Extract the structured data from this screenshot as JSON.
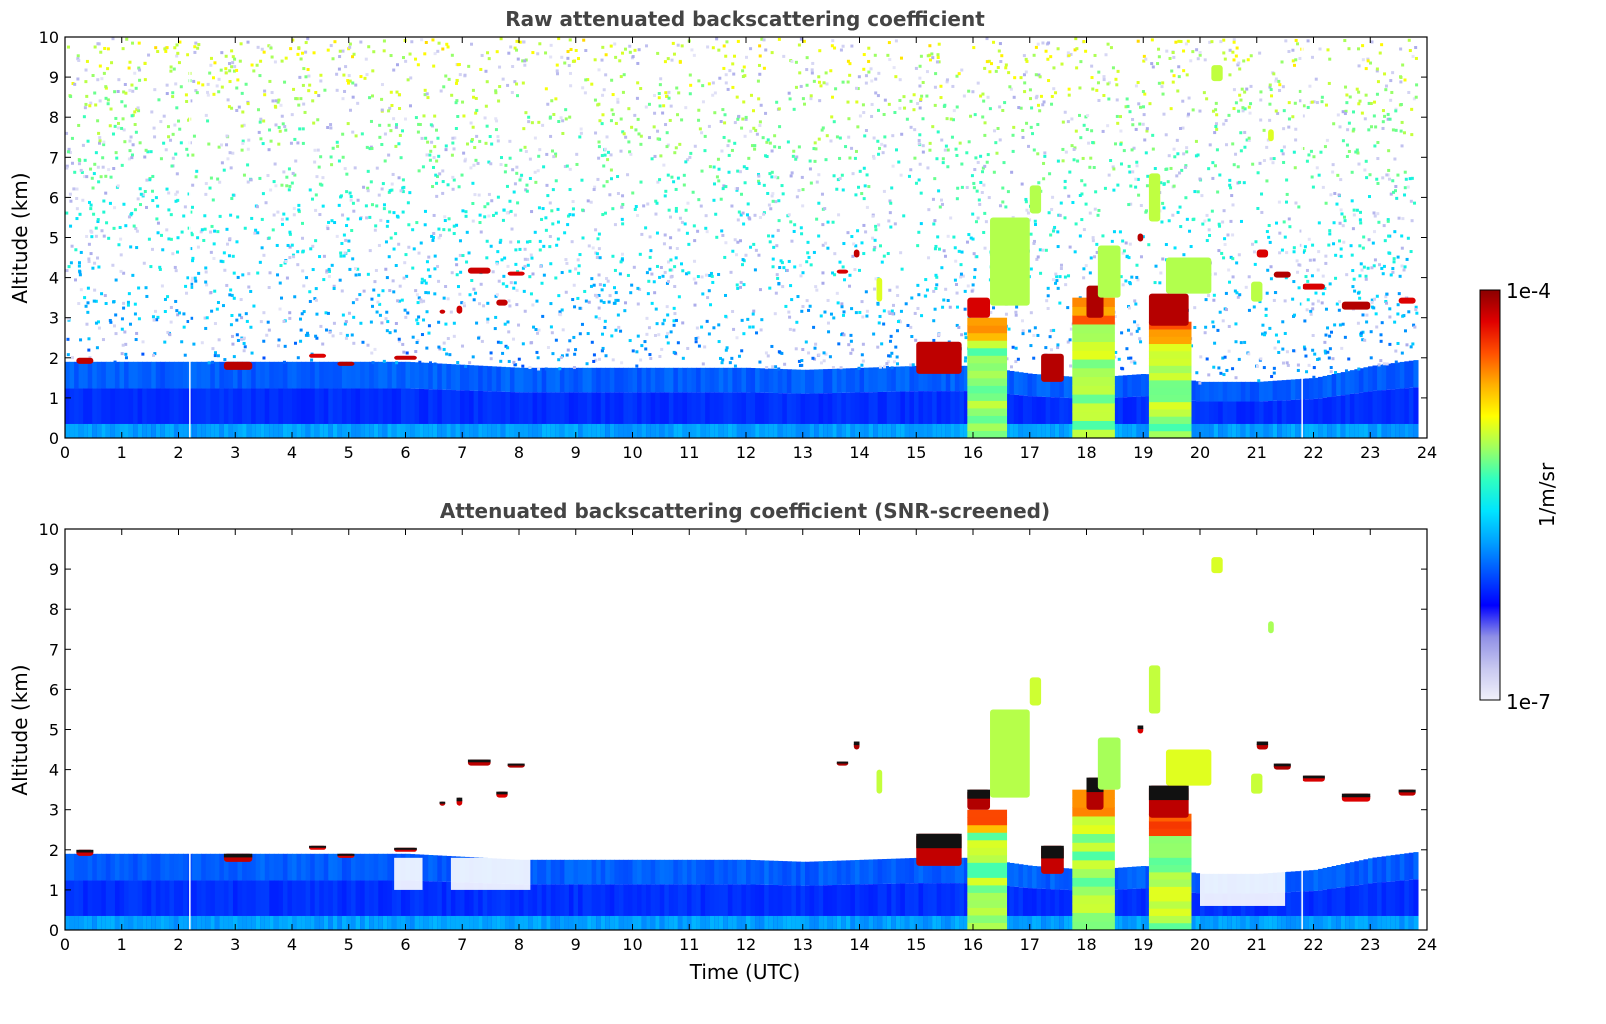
{
  "chart_data": [
    {
      "type": "heatmap",
      "title": "Raw attenuated backscattering coefficient",
      "xlabel": "",
      "ylabel": "Altitude (km)",
      "xlim": [
        0,
        24
      ],
      "ylim": [
        0,
        10
      ],
      "x_ticks": [
        "0",
        "1",
        "2",
        "3",
        "4",
        "5",
        "6",
        "7",
        "8",
        "9",
        "10",
        "11",
        "12",
        "13",
        "14",
        "15",
        "16",
        "17",
        "18",
        "19",
        "20",
        "21",
        "22",
        "23",
        "24"
      ],
      "y_ticks": [
        "0",
        "1",
        "2",
        "3",
        "4",
        "5",
        "6",
        "7",
        "8",
        "9",
        "10"
      ],
      "grid": false,
      "noise_above_boundary_layer": true,
      "boundary_layer": [
        {
          "x": 0,
          "top": 1.9
        },
        {
          "x": 2,
          "top": 1.9
        },
        {
          "x": 4,
          "top": 1.9
        },
        {
          "x": 6,
          "top": 1.9
        },
        {
          "x": 8,
          "top": 1.75
        },
        {
          "x": 10,
          "top": 1.75
        },
        {
          "x": 12,
          "top": 1.75
        },
        {
          "x": 13,
          "top": 1.7
        },
        {
          "x": 14,
          "top": 1.75
        },
        {
          "x": 15,
          "top": 1.8
        },
        {
          "x": 16,
          "top": 1.8
        },
        {
          "x": 17,
          "top": 1.6
        },
        {
          "x": 18,
          "top": 1.5
        },
        {
          "x": 19,
          "top": 1.6
        },
        {
          "x": 20,
          "top": 1.4
        },
        {
          "x": 21,
          "top": 1.4
        },
        {
          "x": 22,
          "top": 1.5
        },
        {
          "x": 23,
          "top": 1.8
        },
        {
          "x": 23.8,
          "top": 1.95
        }
      ],
      "cloud_features": [
        {
          "x0": 0.2,
          "x1": 0.5,
          "y0": 1.85,
          "y1": 2.0,
          "level": "high"
        },
        {
          "x0": 2.8,
          "x1": 3.3,
          "y0": 1.7,
          "y1": 1.9,
          "level": "high"
        },
        {
          "x0": 4.3,
          "x1": 4.6,
          "y0": 2.0,
          "y1": 2.1,
          "level": "high"
        },
        {
          "x0": 4.8,
          "x1": 5.1,
          "y0": 1.8,
          "y1": 1.9,
          "level": "high"
        },
        {
          "x0": 5.8,
          "x1": 6.2,
          "y0": 1.95,
          "y1": 2.05,
          "level": "high"
        },
        {
          "x0": 6.6,
          "x1": 6.7,
          "y0": 3.1,
          "y1": 3.2,
          "level": "high"
        },
        {
          "x0": 6.9,
          "x1": 7.0,
          "y0": 3.1,
          "y1": 3.3,
          "level": "high"
        },
        {
          "x0": 7.1,
          "x1": 7.5,
          "y0": 4.1,
          "y1": 4.25,
          "level": "high"
        },
        {
          "x0": 7.8,
          "x1": 8.1,
          "y0": 4.05,
          "y1": 4.15,
          "level": "high"
        },
        {
          "x0": 7.6,
          "x1": 7.8,
          "y0": 3.3,
          "y1": 3.45,
          "level": "high"
        },
        {
          "x0": 13.6,
          "x1": 13.8,
          "y0": 4.1,
          "y1": 4.2,
          "level": "high"
        },
        {
          "x0": 13.9,
          "x1": 14.0,
          "y0": 4.5,
          "y1": 4.7,
          "level": "high"
        },
        {
          "x0": 14.3,
          "x1": 14.4,
          "y0": 3.4,
          "y1": 4.0,
          "level": "mid"
        },
        {
          "x0": 15.0,
          "x1": 15.8,
          "y0": 1.6,
          "y1": 2.4,
          "level": "high"
        },
        {
          "x0": 15.9,
          "x1": 16.3,
          "y0": 3.0,
          "y1": 3.5,
          "level": "high"
        },
        {
          "x0": 16.3,
          "x1": 17.0,
          "y0": 3.3,
          "y1": 5.5,
          "level": "mid"
        },
        {
          "x0": 17.0,
          "x1": 17.2,
          "y0": 5.6,
          "y1": 6.3,
          "level": "mid"
        },
        {
          "x0": 17.2,
          "x1": 17.6,
          "y0": 1.4,
          "y1": 2.1,
          "level": "high"
        },
        {
          "x0": 18.0,
          "x1": 18.3,
          "y0": 3.0,
          "y1": 3.8,
          "level": "high"
        },
        {
          "x0": 18.2,
          "x1": 18.6,
          "y0": 3.5,
          "y1": 4.8,
          "level": "mid"
        },
        {
          "x0": 18.9,
          "x1": 19.0,
          "y0": 4.9,
          "y1": 5.1,
          "level": "high"
        },
        {
          "x0": 19.1,
          "x1": 19.3,
          "y0": 5.4,
          "y1": 6.6,
          "level": "mid"
        },
        {
          "x0": 19.1,
          "x1": 19.8,
          "y0": 2.8,
          "y1": 3.6,
          "level": "high"
        },
        {
          "x0": 19.4,
          "x1": 20.2,
          "y0": 3.6,
          "y1": 4.5,
          "level": "mid"
        },
        {
          "x0": 20.2,
          "x1": 20.4,
          "y0": 8.9,
          "y1": 9.3,
          "level": "mid"
        },
        {
          "x0": 20.9,
          "x1": 21.1,
          "y0": 3.4,
          "y1": 3.9,
          "level": "mid"
        },
        {
          "x0": 21.0,
          "x1": 21.2,
          "y0": 4.5,
          "y1": 4.7,
          "level": "high"
        },
        {
          "x0": 21.2,
          "x1": 21.3,
          "y0": 7.4,
          "y1": 7.7,
          "level": "mid"
        },
        {
          "x0": 21.3,
          "x1": 21.6,
          "y0": 4.0,
          "y1": 4.15,
          "level": "high"
        },
        {
          "x0": 21.8,
          "x1": 22.2,
          "y0": 3.7,
          "y1": 3.85,
          "level": "high"
        },
        {
          "x0": 22.5,
          "x1": 23.0,
          "y0": 3.2,
          "y1": 3.4,
          "level": "high"
        },
        {
          "x0": 23.5,
          "x1": 23.8,
          "y0": 3.35,
          "y1": 3.5,
          "level": "high"
        }
      ],
      "precipitation_columns": [
        {
          "x0": 15.9,
          "x1": 16.6,
          "top": 3.0,
          "level": "mid"
        },
        {
          "x0": 17.75,
          "x1": 18.5,
          "top": 3.5,
          "level": "mid"
        },
        {
          "x0": 19.1,
          "x1": 19.85,
          "top": 2.9,
          "level": "mid"
        }
      ],
      "missing_profiles": [
        2.2,
        21.8
      ]
    },
    {
      "type": "heatmap",
      "title": "Attenuated backscattering coefficient (SNR-screened)",
      "xlabel": "Time (UTC)",
      "ylabel": "Altitude (km)",
      "xlim": [
        0,
        24
      ],
      "ylim": [
        0,
        10
      ],
      "x_ticks": [
        "0",
        "1",
        "2",
        "3",
        "4",
        "5",
        "6",
        "7",
        "8",
        "9",
        "10",
        "11",
        "12",
        "13",
        "14",
        "15",
        "16",
        "17",
        "18",
        "19",
        "20",
        "21",
        "22",
        "23",
        "24"
      ],
      "y_ticks": [
        "0",
        "1",
        "2",
        "3",
        "4",
        "5",
        "6",
        "7",
        "8",
        "9",
        "10"
      ],
      "grid": false,
      "noise_above_boundary_layer": false,
      "screened_gaps": [
        {
          "x0": 5.8,
          "x1": 6.3,
          "y0": 1.0,
          "y1": 1.8
        },
        {
          "x0": 6.8,
          "x1": 8.2,
          "y0": 1.0,
          "y1": 1.8
        },
        {
          "x0": 20.0,
          "x1": 21.5,
          "y0": 0.6,
          "y1": 1.5
        }
      ],
      "colorbar": {
        "label": "1/m/sr",
        "max_label": "1e-4",
        "min_label": "1e-7",
        "scale": "log",
        "range": [
          1e-07,
          0.0001
        ],
        "colormap": [
          "#f0f0fa",
          "#c8c8f0",
          "#9090e6",
          "#0000ff",
          "#0050ff",
          "#00a0ff",
          "#00e5ff",
          "#30ffc0",
          "#a0ff60",
          "#ffff00",
          "#ffb000",
          "#ff5000",
          "#e00000",
          "#8b0000"
        ]
      }
    }
  ]
}
